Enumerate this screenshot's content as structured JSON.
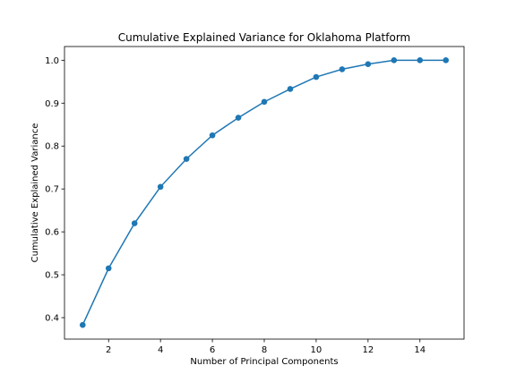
{
  "chart_data": {
    "type": "line",
    "title": "Cumulative Explained Variance for Oklahoma Platform",
    "xlabel": "Number of Principal Components",
    "ylabel": "Cumulative Explained Variance",
    "xlim": [
      0.3,
      15.7
    ],
    "ylim": [
      0.35,
      1.032
    ],
    "xticks": [
      2,
      4,
      6,
      8,
      10,
      12,
      14
    ],
    "yticks": [
      0.4,
      0.5,
      0.6,
      0.7,
      0.8,
      0.9,
      1.0
    ],
    "ytick_labels": [
      "0.4",
      "0.5",
      "0.6",
      "0.7",
      "0.8",
      "0.9",
      "1.0"
    ],
    "grid": false,
    "marker": "circle",
    "color": "#1f77b4",
    "x": [
      1,
      2,
      3,
      4,
      5,
      6,
      7,
      8,
      9,
      10,
      11,
      12,
      13,
      14,
      15
    ],
    "y": [
      0.383,
      0.515,
      0.62,
      0.705,
      0.77,
      0.825,
      0.866,
      0.903,
      0.933,
      0.961,
      0.979,
      0.991,
      1.0,
      1.0,
      1.0
    ]
  }
}
